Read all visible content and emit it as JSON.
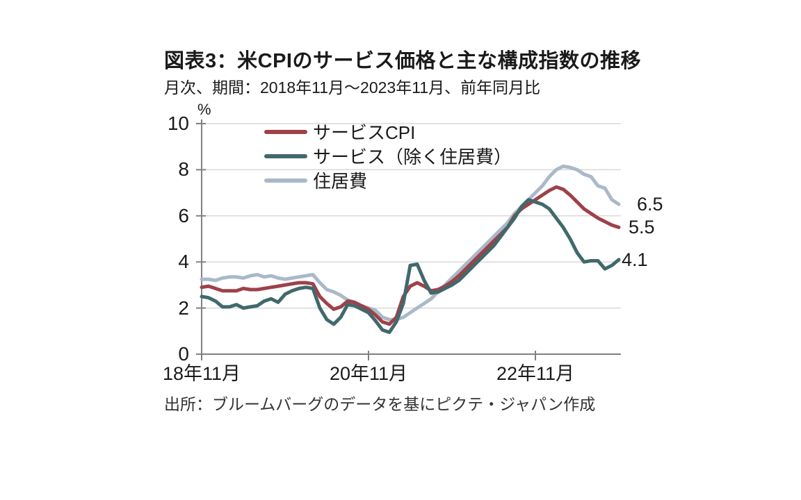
{
  "figure": {
    "title": "図表3：米CPIのサービス価格と主な構成指数の推移",
    "subtitle": "月次、期間：2018年11月～2023年11月、前年同月比",
    "unit_label": "%",
    "source": "出所：ブルームバーグのデータを基にピクテ・ジャパン作成"
  },
  "colors": {
    "background": "#ffffff",
    "grid": "#d9d9d9",
    "axis": "#808080",
    "text": "#1a1a1a"
  },
  "chart_data": {
    "type": "line",
    "title": "図表3：米CPIのサービス価格と主な構成指数の推移",
    "xlabel": "",
    "ylabel": "%",
    "ylim": [
      0,
      10
    ],
    "y_ticks": [
      0,
      2,
      4,
      6,
      8,
      10
    ],
    "grid": "horizontal",
    "legend_position": "inside-top-left",
    "x_start": "2018年11月",
    "x_end": "2023年11月",
    "x_frequency": "monthly",
    "x_tick_labels": [
      "18年11月",
      "20年11月",
      "22年11月"
    ],
    "x_tick_month_index": [
      0,
      24,
      48
    ],
    "series": [
      {
        "name": "サービスCPI",
        "color": "#9e4149",
        "end_label": "5.5",
        "values": [
          2.9,
          2.95,
          2.85,
          2.75,
          2.75,
          2.75,
          2.85,
          2.8,
          2.8,
          2.85,
          2.9,
          2.95,
          3.0,
          3.05,
          3.1,
          3.1,
          3.05,
          2.5,
          2.2,
          1.95,
          2.05,
          2.3,
          2.25,
          2.1,
          1.95,
          1.7,
          1.4,
          1.3,
          1.6,
          2.5,
          2.95,
          3.1,
          2.95,
          2.75,
          2.8,
          2.95,
          3.15,
          3.4,
          3.7,
          4.0,
          4.3,
          4.6,
          4.9,
          5.2,
          5.5,
          6.0,
          6.3,
          6.5,
          6.7,
          6.9,
          7.1,
          7.25,
          7.15,
          6.9,
          6.6,
          6.3,
          6.1,
          5.9,
          5.75,
          5.6,
          5.5
        ]
      },
      {
        "name": "サービス（除く住居費）",
        "color": "#41696c",
        "end_label": "4.1",
        "values": [
          2.5,
          2.45,
          2.3,
          2.05,
          2.05,
          2.15,
          2.0,
          2.05,
          2.1,
          2.3,
          2.4,
          2.25,
          2.6,
          2.75,
          2.85,
          2.9,
          2.85,
          2.0,
          1.5,
          1.3,
          1.6,
          2.15,
          2.1,
          1.95,
          1.8,
          1.45,
          1.05,
          0.95,
          1.4,
          2.2,
          3.85,
          3.9,
          3.2,
          2.65,
          2.7,
          2.85,
          3.0,
          3.2,
          3.5,
          3.8,
          4.1,
          4.4,
          4.7,
          5.1,
          5.5,
          5.9,
          6.4,
          6.7,
          6.6,
          6.5,
          6.3,
          5.9,
          5.5,
          5.0,
          4.4,
          4.0,
          4.05,
          4.05,
          3.7,
          3.85,
          4.1
        ]
      },
      {
        "name": "住居費",
        "color": "#a9b9c9",
        "end_label": "6.5",
        "values": [
          3.25,
          3.25,
          3.2,
          3.3,
          3.35,
          3.35,
          3.3,
          3.4,
          3.45,
          3.35,
          3.4,
          3.3,
          3.25,
          3.3,
          3.35,
          3.4,
          3.45,
          3.1,
          2.8,
          2.7,
          2.55,
          2.35,
          2.25,
          2.1,
          2.0,
          1.9,
          1.6,
          1.5,
          1.5,
          1.6,
          1.8,
          2.0,
          2.2,
          2.4,
          2.7,
          3.0,
          3.3,
          3.6,
          3.9,
          4.2,
          4.5,
          4.8,
          5.1,
          5.4,
          5.7,
          6.1,
          6.4,
          6.7,
          7.0,
          7.3,
          7.7,
          8.0,
          8.15,
          8.1,
          8.0,
          7.8,
          7.7,
          7.3,
          7.2,
          6.7,
          6.5
        ]
      }
    ]
  }
}
